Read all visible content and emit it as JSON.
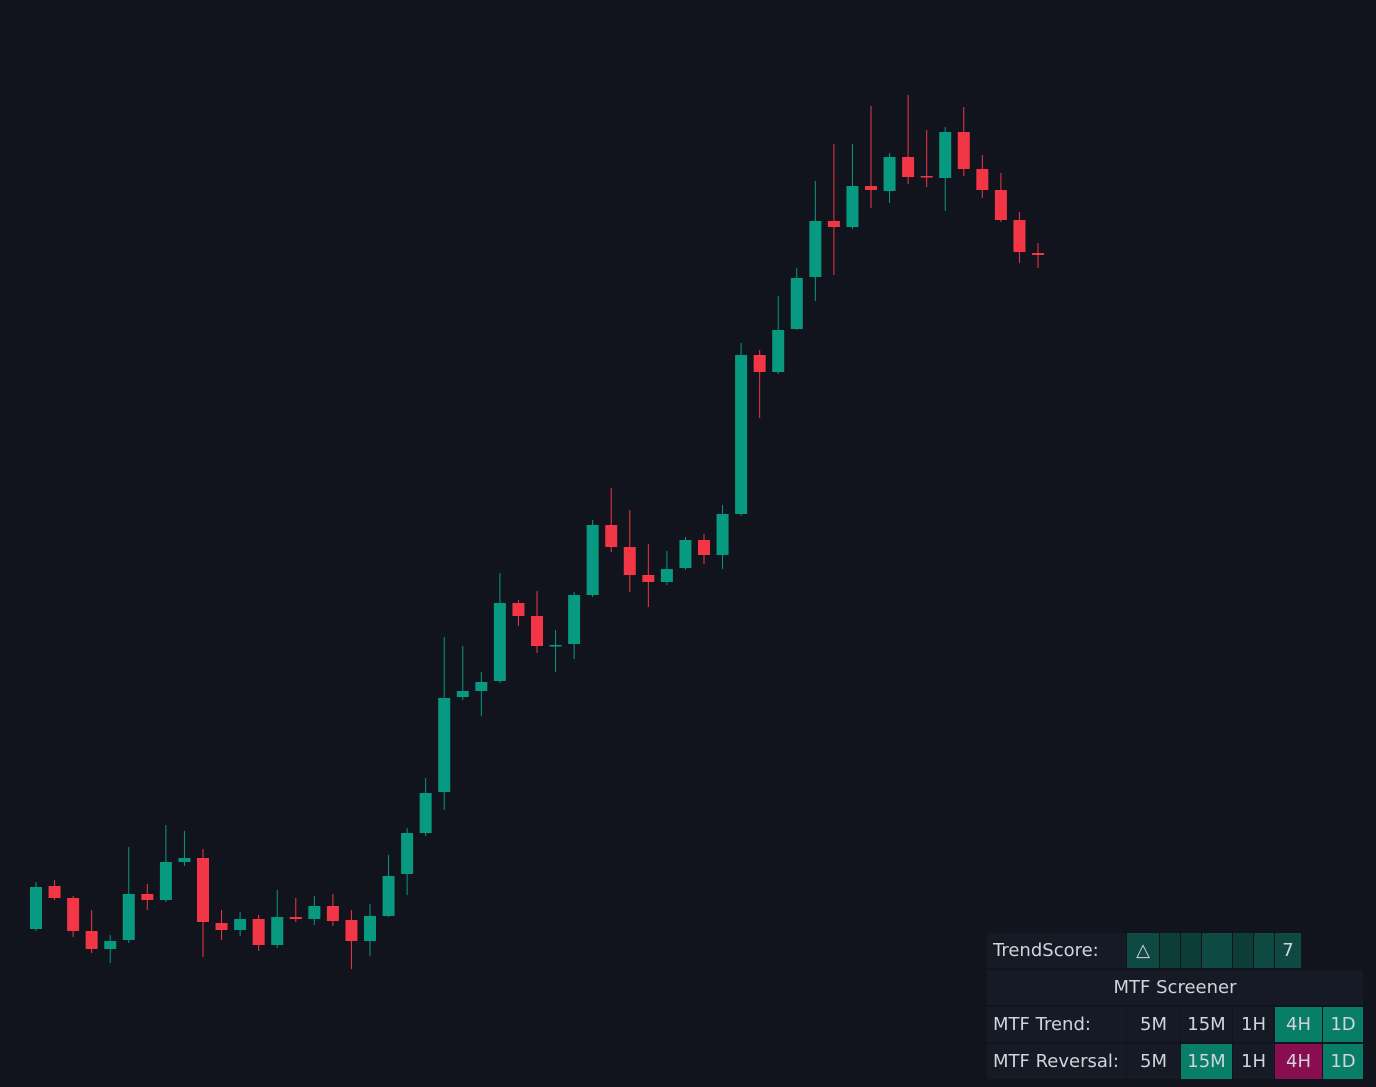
{
  "chart_data": {
    "type": "candlestick",
    "up_color": "#089981",
    "down_color": "#f23645",
    "ylim": [
      0,
      1087
    ],
    "open": [
      158,
      201,
      189,
      156,
      138,
      147,
      193,
      187,
      225,
      229,
      164,
      157,
      168,
      142,
      170,
      168,
      181,
      167,
      146,
      171,
      213,
      254,
      295,
      390,
      396,
      406,
      484,
      471,
      441,
      443,
      492,
      562,
      540,
      512,
      505,
      519,
      547,
      532,
      573,
      732,
      715,
      758,
      810,
      866,
      860,
      901,
      896,
      930,
      911,
      909,
      955,
      918,
      897,
      867,
      834
    ],
    "high": [
      205,
      207,
      191,
      177,
      152,
      240,
      203,
      262,
      256,
      238,
      177,
      175,
      172,
      197,
      189,
      191,
      193,
      177,
      183,
      232,
      259,
      309,
      450,
      441,
      415,
      514,
      487,
      496,
      457,
      495,
      567,
      599,
      577,
      543,
      536,
      550,
      553,
      582,
      744,
      737,
      791,
      819,
      906,
      943,
      943,
      981,
      934,
      992,
      957,
      960,
      980,
      932,
      914,
      875,
      844
    ],
    "low": [
      156,
      187,
      150,
      134,
      124,
      144,
      177,
      185,
      221,
      130,
      147,
      151,
      136,
      139,
      165,
      162,
      161,
      118,
      131,
      170,
      192,
      251,
      277,
      387,
      371,
      404,
      461,
      434,
      415,
      428,
      490,
      535,
      495,
      480,
      502,
      517,
      523,
      518,
      571,
      669,
      713,
      757,
      786,
      812,
      858,
      879,
      884,
      903,
      900,
      876,
      911,
      889,
      865,
      824,
      819
    ],
    "close": [
      200,
      189,
      156,
      138,
      146,
      193,
      187,
      225,
      229,
      165,
      157,
      168,
      142,
      170,
      168,
      181,
      166,
      146,
      171,
      211,
      254,
      294,
      389,
      396,
      405,
      484,
      471,
      441,
      442,
      492,
      562,
      540,
      512,
      505,
      518,
      547,
      532,
      573,
      732,
      715,
      757,
      809,
      866,
      860,
      901,
      897,
      930,
      910,
      910,
      955,
      918,
      897,
      867,
      835,
      832
    ]
  },
  "table": {
    "trendscore": {
      "label": "TrendScore:",
      "symbol": "△",
      "score": "7"
    },
    "title": "MTF Screener",
    "rows": [
      {
        "label": "MTF Trend:",
        "cells": [
          "5M",
          "15M",
          "1H",
          "4H",
          "1D"
        ]
      },
      {
        "label": "MTF Reversal:",
        "cells": [
          "5M",
          "15M",
          "1H",
          "4H",
          "1D"
        ]
      }
    ]
  }
}
